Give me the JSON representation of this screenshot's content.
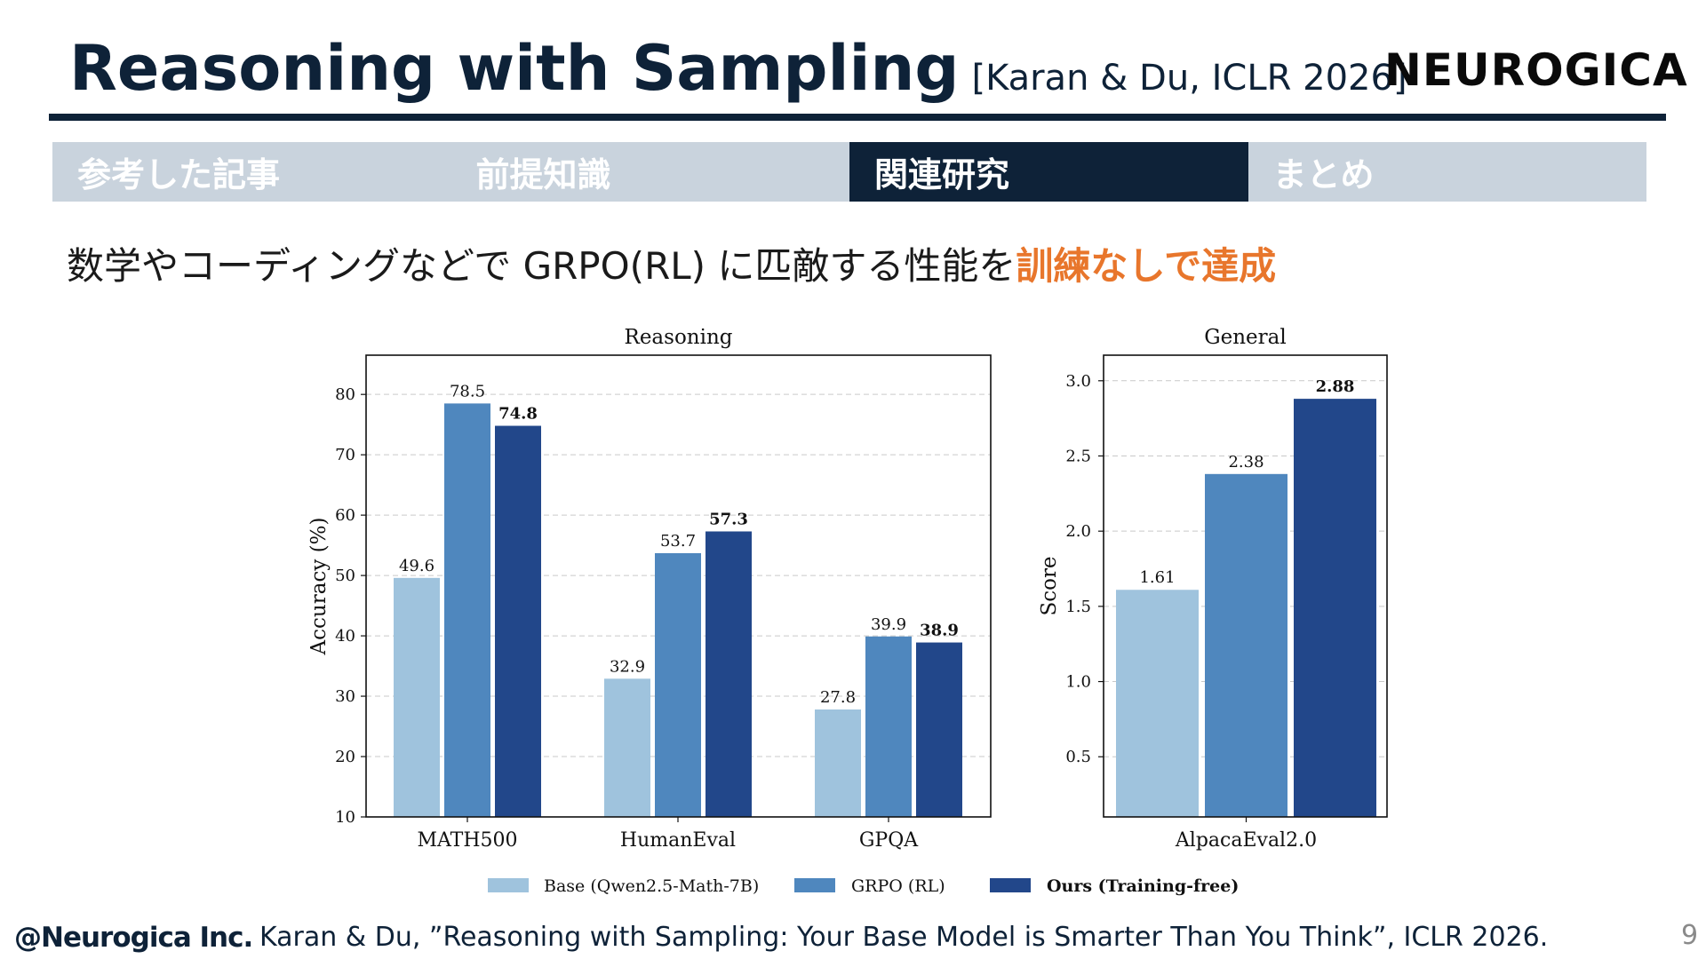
{
  "header": {
    "title": "Reasoning with Sampling",
    "reference": "[Karan & Du, ICLR 2026]",
    "logo": "NEUROGICA"
  },
  "tabs": [
    {
      "label": "参考した記事",
      "active": false
    },
    {
      "label": "前提知識",
      "active": false
    },
    {
      "label": "関連研究",
      "active": true
    },
    {
      "label": "まとめ",
      "active": false
    }
  ],
  "subtitle": {
    "text": "数学やコーディングなどで GRPO(RL) に匹敵する性能を",
    "highlight": "訓練なしで達成"
  },
  "colors": {
    "navy": "#0e2238",
    "highlight": "#e8762c",
    "base": "#9fc3dd",
    "grpo": "#4f87be",
    "ours": "#22478a"
  },
  "chart_data": [
    {
      "type": "bar",
      "title": "Reasoning",
      "ylabel": "Accuracy (%)",
      "xlabel": "",
      "ylim": [
        10,
        86.5
      ],
      "yticks": [
        10,
        20,
        30,
        40,
        50,
        60,
        70,
        80
      ],
      "categories": [
        "MATH500",
        "HumanEval",
        "GPQA"
      ],
      "series": [
        {
          "name": "Base (Qwen2.5-Math-7B)",
          "values": [
            49.6,
            32.9,
            27.8
          ],
          "bold": false
        },
        {
          "name": "GRPO (RL)",
          "values": [
            78.5,
            53.7,
            39.9
          ],
          "bold": false
        },
        {
          "name": "Ours (Training-free)",
          "values": [
            74.8,
            57.3,
            38.9
          ],
          "bold": true
        }
      ],
      "labels": [
        [
          "49.6",
          "78.5",
          "74.8"
        ],
        [
          "32.9",
          "53.7",
          "57.3"
        ],
        [
          "27.8",
          "39.9",
          "38.9"
        ]
      ],
      "grid": true
    },
    {
      "type": "bar",
      "title": "General",
      "ylabel": "Score",
      "xlabel": "",
      "ylim": [
        0.1,
        3.17
      ],
      "yticks": [
        0.5,
        1.0,
        1.5,
        2.0,
        2.5,
        3.0
      ],
      "ytick_labels": [
        "0.5",
        "1.0",
        "1.5",
        "2.0",
        "2.5",
        "3.0"
      ],
      "categories": [
        "AlpacaEval2.0"
      ],
      "series": [
        {
          "name": "Base (Qwen2.5-Math-7B)",
          "values": [
            1.61
          ],
          "bold": false
        },
        {
          "name": "GRPO (RL)",
          "values": [
            2.38
          ],
          "bold": false
        },
        {
          "name": "Ours (Training-free)",
          "values": [
            2.88
          ],
          "bold": true
        }
      ],
      "labels": [
        [
          "1.61",
          "2.38",
          "2.88"
        ]
      ],
      "grid": true
    }
  ],
  "legend": [
    {
      "label": "Base (Qwen2.5-Math-7B)",
      "bold": false
    },
    {
      "label": "GRPO (RL)",
      "bold": false
    },
    {
      "label": "Ours (Training-free)",
      "bold": true
    }
  ],
  "footer": {
    "company": "@Neurogica Inc.",
    "citation": "Karan & Du, ”Reasoning with Sampling: Your Base Model is Smarter Than You Think”, ICLR 2026.",
    "page": "9"
  }
}
